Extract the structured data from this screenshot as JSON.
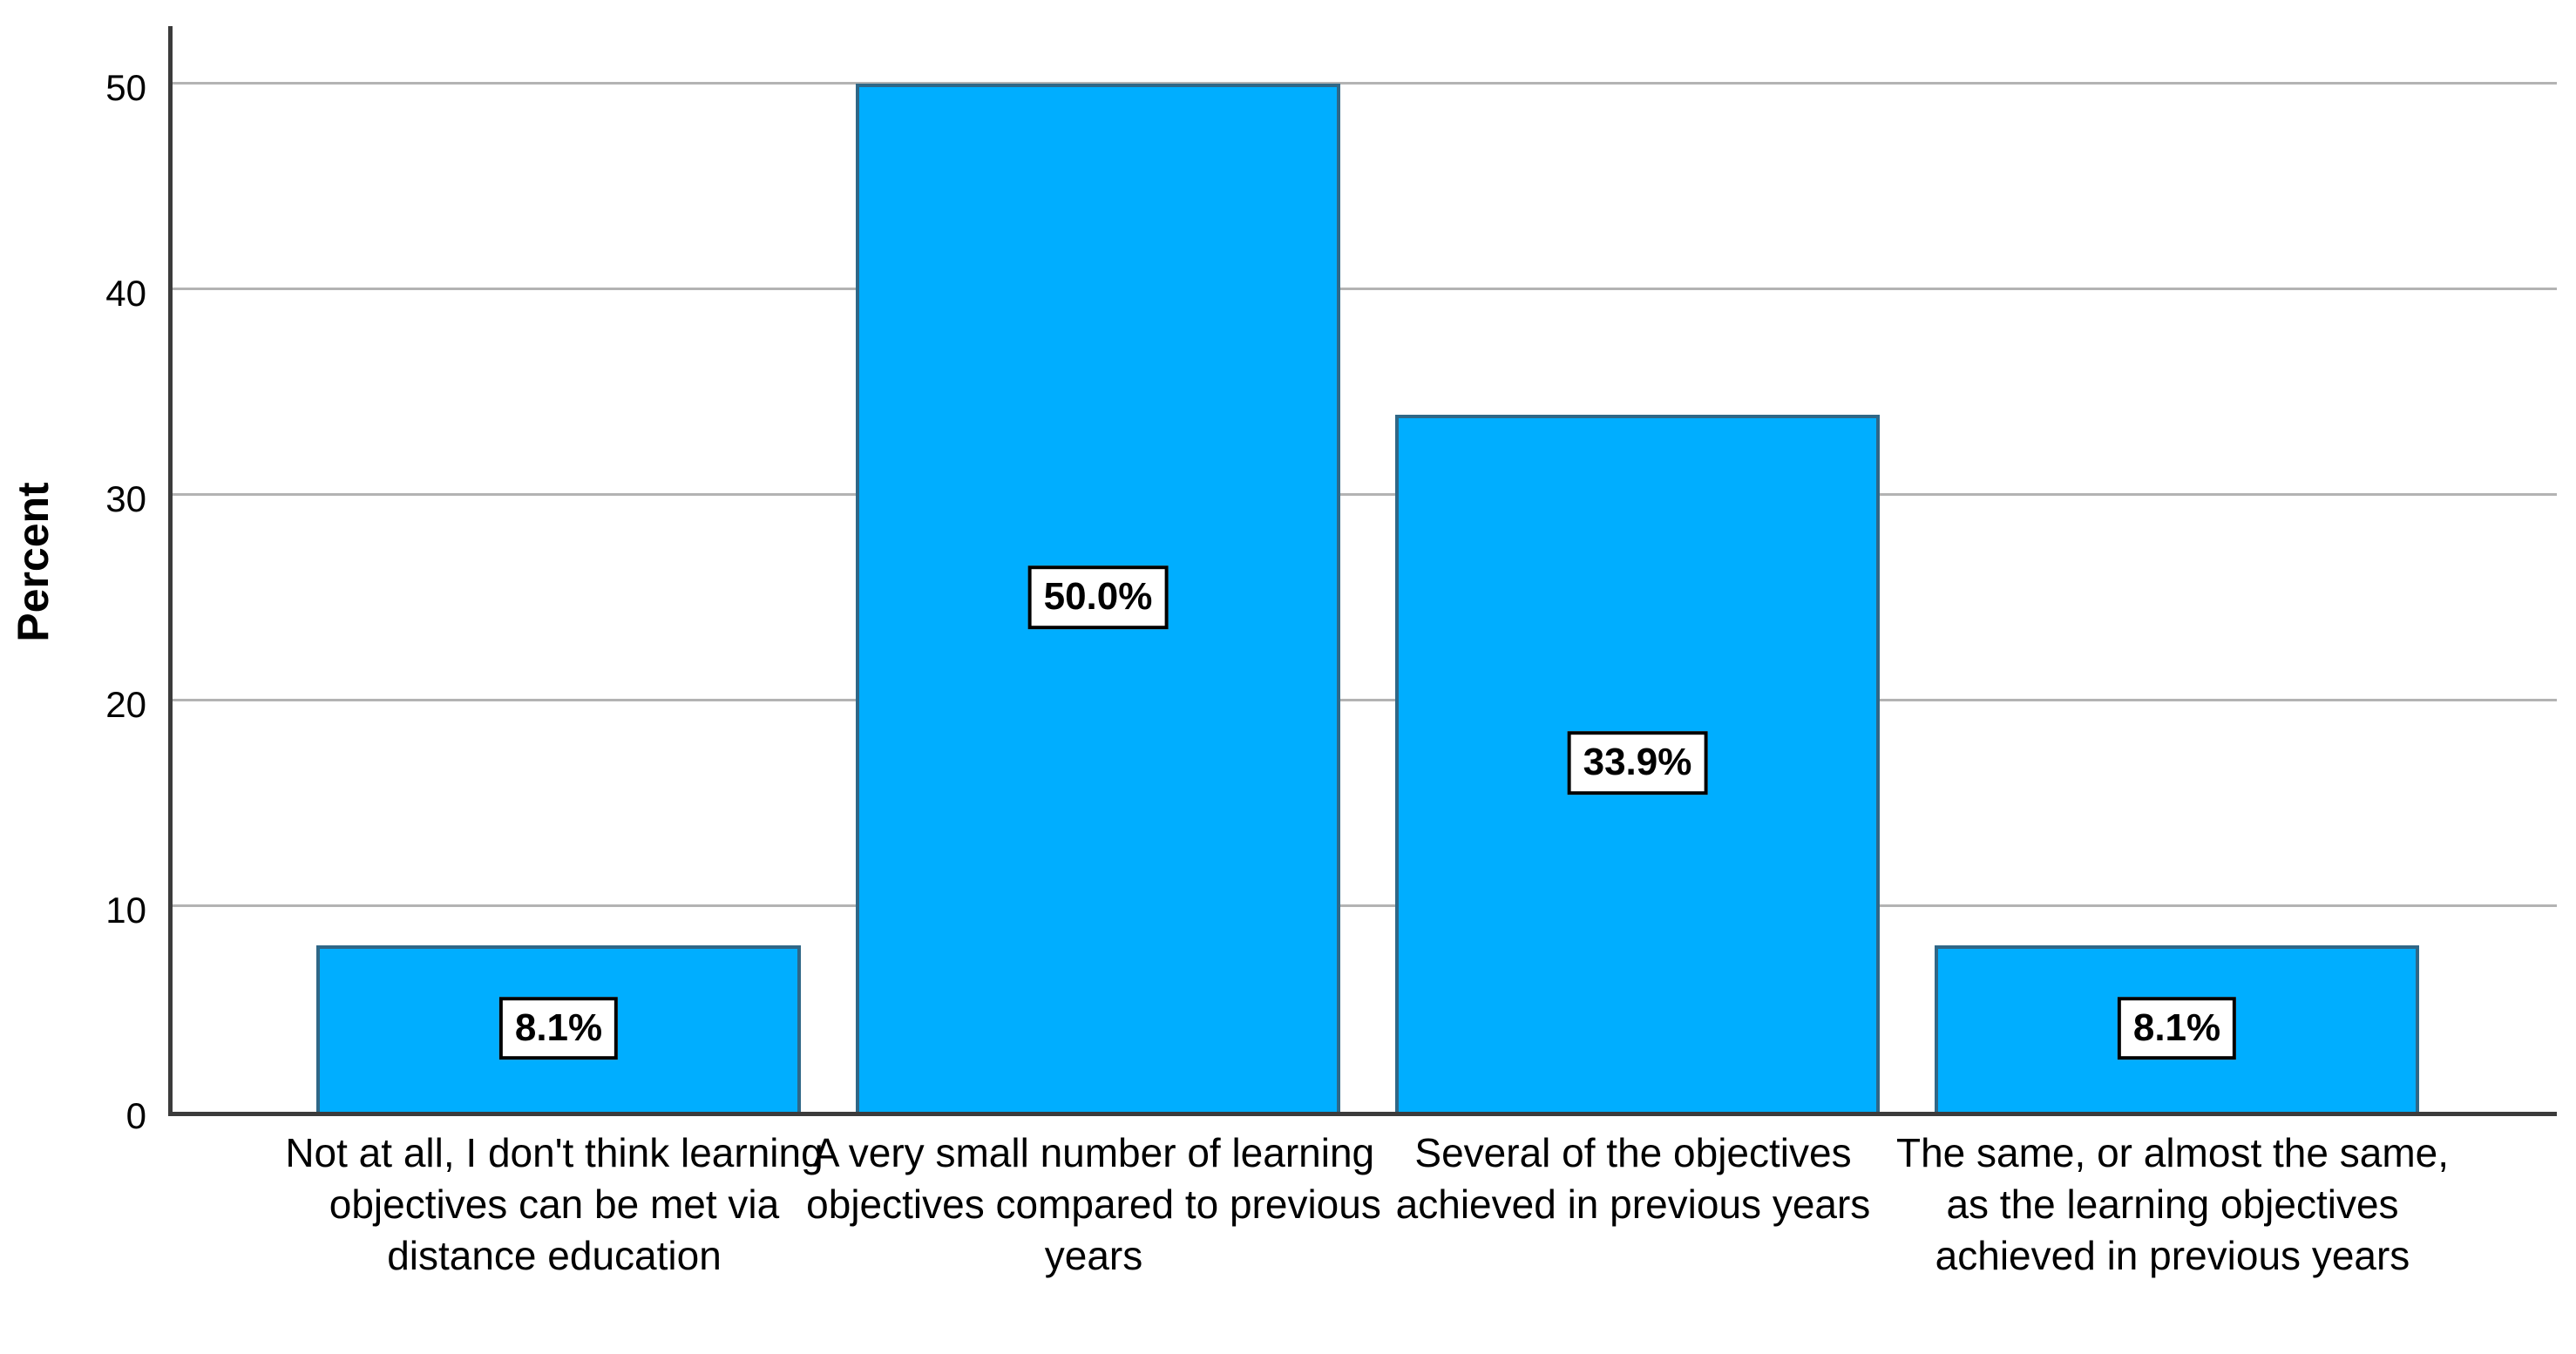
{
  "chart_data": {
    "type": "bar",
    "title": "",
    "ylabel": "Percent",
    "xlabel": "",
    "categories": [
      "Not at all, I don't think learning objectives can be met via distance education",
      "A very small number of learning objectives compared to previous years",
      "Several of the objectives achieved in previous years",
      "The same, or almost the same, as the learning objectives achieved in previous years"
    ],
    "values": [
      8.1,
      50.0,
      33.9,
      8.1
    ],
    "value_labels": [
      "8.1%",
      "50.0%",
      "33.9%",
      "8.1%"
    ],
    "yticks": [
      0,
      10,
      20,
      30,
      40,
      50
    ],
    "ylim": [
      0,
      52.78
    ],
    "grid": "horizontal",
    "legend": "none",
    "bar_color": "#00AEFF",
    "bar_border_color": "#2F6787",
    "gridline_color": "#B3B3B3",
    "axis_color": "#3B3B3B"
  }
}
